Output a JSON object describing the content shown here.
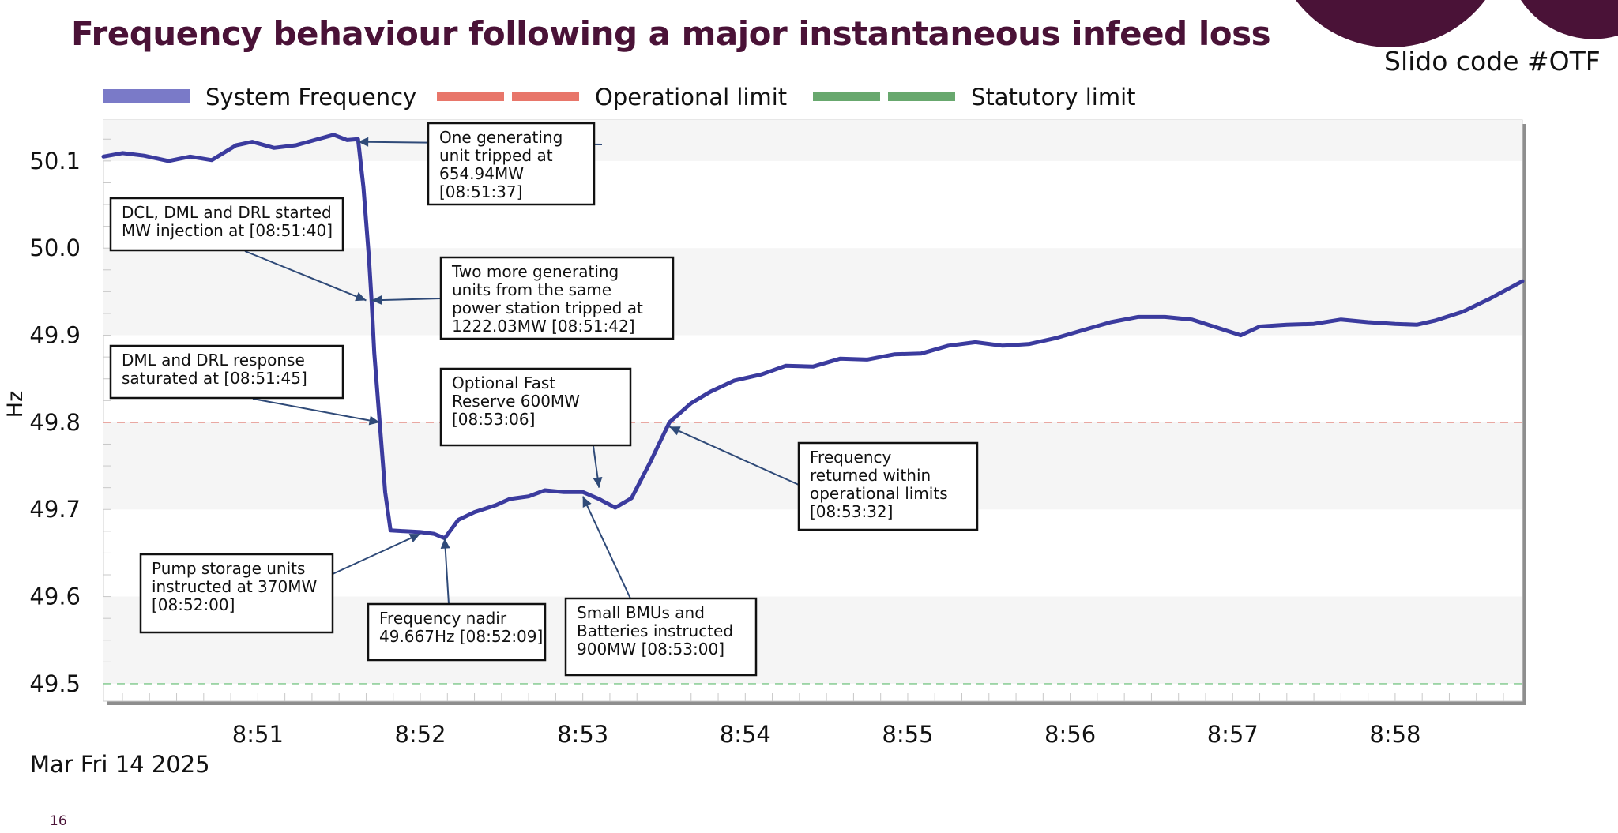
{
  "slide": {
    "title": "Frequency behaviour following a major instantaneous infeed loss",
    "slido": "Slido code #OTF",
    "page_number": "16",
    "accent_color": "#4a1237"
  },
  "chart_data": {
    "type": "line",
    "xlabel": "",
    "ylabel": "Hz",
    "date_label": "Mar Fri 14 2025",
    "xlim": [
      "08:50:03",
      "08:58:47"
    ],
    "ylim": [
      49.48,
      50.147
    ],
    "x_ticks": [
      {
        "t": "08:51:00",
        "label": "8:51"
      },
      {
        "t": "08:52:00",
        "label": "8:52"
      },
      {
        "t": "08:53:00",
        "label": "8:53"
      },
      {
        "t": "08:54:00",
        "label": "8:54"
      },
      {
        "t": "08:55:00",
        "label": "8:55"
      },
      {
        "t": "08:56:00",
        "label": "8:56"
      },
      {
        "t": "08:57:00",
        "label": "8:57"
      },
      {
        "t": "08:58:00",
        "label": "8:58"
      }
    ],
    "y_ticks": [
      {
        "v": 50.1,
        "label": "50.1"
      },
      {
        "v": 50.0,
        "label": "50.0"
      },
      {
        "v": 49.9,
        "label": "49.9"
      },
      {
        "v": 49.8,
        "label": "49.8"
      },
      {
        "v": 49.7,
        "label": "49.7"
      },
      {
        "v": 49.6,
        "label": "49.6"
      },
      {
        "v": 49.5,
        "label": "49.5"
      }
    ],
    "legend_position": "top",
    "grid": "alternating horizontal bands, minor tick marks",
    "series": [
      {
        "name": "System Frequency",
        "color": "#3b3b9e",
        "legend_color": "#7a7ac8",
        "points": [
          [
            "08:50:03",
            50.105
          ],
          [
            "08:50:10",
            50.109
          ],
          [
            "08:50:18",
            50.106
          ],
          [
            "08:50:27",
            50.1
          ],
          [
            "08:50:35",
            50.105
          ],
          [
            "08:50:43",
            50.101
          ],
          [
            "08:50:52",
            50.118
          ],
          [
            "08:50:58",
            50.122
          ],
          [
            "08:51:06",
            50.115
          ],
          [
            "08:51:14",
            50.118
          ],
          [
            "08:51:21",
            50.124
          ],
          [
            "08:51:28",
            50.13
          ],
          [
            "08:51:33",
            50.124
          ],
          [
            "08:51:37",
            50.125
          ],
          [
            "08:51:39",
            50.07
          ],
          [
            "08:51:41",
            49.99
          ],
          [
            "08:51:42",
            49.94
          ],
          [
            "08:51:43",
            49.88
          ],
          [
            "08:51:45",
            49.8
          ],
          [
            "08:51:47",
            49.72
          ],
          [
            "08:51:49",
            49.676
          ],
          [
            "08:51:54",
            49.675
          ],
          [
            "08:52:00",
            49.674
          ],
          [
            "08:52:05",
            49.672
          ],
          [
            "08:52:09",
            49.667
          ],
          [
            "08:52:14",
            49.688
          ],
          [
            "08:52:20",
            49.697
          ],
          [
            "08:52:28",
            49.705
          ],
          [
            "08:52:33",
            49.712
          ],
          [
            "08:52:40",
            49.715
          ],
          [
            "08:52:46",
            49.722
          ],
          [
            "08:52:53",
            49.72
          ],
          [
            "08:53:00",
            49.72
          ],
          [
            "08:53:06",
            49.712
          ],
          [
            "08:53:12",
            49.702
          ],
          [
            "08:53:18",
            49.713
          ],
          [
            "08:53:25",
            49.755
          ],
          [
            "08:53:32",
            49.8
          ],
          [
            "08:53:40",
            49.822
          ],
          [
            "08:53:47",
            49.835
          ],
          [
            "08:53:56",
            49.848
          ],
          [
            "08:54:06",
            49.855
          ],
          [
            "08:54:15",
            49.865
          ],
          [
            "08:54:25",
            49.864
          ],
          [
            "08:54:35",
            49.873
          ],
          [
            "08:54:45",
            49.872
          ],
          [
            "08:54:55",
            49.878
          ],
          [
            "08:55:05",
            49.879
          ],
          [
            "08:55:15",
            49.888
          ],
          [
            "08:55:25",
            49.892
          ],
          [
            "08:55:35",
            49.888
          ],
          [
            "08:55:45",
            49.89
          ],
          [
            "08:55:55",
            49.897
          ],
          [
            "08:56:05",
            49.906
          ],
          [
            "08:56:15",
            49.915
          ],
          [
            "08:56:25",
            49.921
          ],
          [
            "08:56:35",
            49.921
          ],
          [
            "08:56:45",
            49.918
          ],
          [
            "08:56:55",
            49.908
          ],
          [
            "08:57:03",
            49.9
          ],
          [
            "08:57:10",
            49.91
          ],
          [
            "08:57:20",
            49.912
          ],
          [
            "08:57:30",
            49.913
          ],
          [
            "08:57:40",
            49.918
          ],
          [
            "08:57:50",
            49.915
          ],
          [
            "08:58:00",
            49.913
          ],
          [
            "08:58:08",
            49.912
          ],
          [
            "08:58:15",
            49.917
          ],
          [
            "08:58:25",
            49.927
          ],
          [
            "08:58:35",
            49.942
          ],
          [
            "08:58:47",
            49.962
          ]
        ]
      },
      {
        "name": "Operational limit",
        "color": "#e58f86",
        "legend_color": "#e8766a",
        "value": 49.8,
        "dashed": true
      },
      {
        "name": "Statutory limit",
        "color": "#8fcf9a",
        "legend_color": "#68a86e",
        "value": 49.5,
        "dashed": true
      }
    ],
    "annotations": [
      {
        "lines": [
          "One generating",
          "unit tripped at",
          "654.94MW",
          "[08:51:37]"
        ],
        "target": [
          "08:51:37",
          50.122
        ]
      },
      {
        "lines": [
          "DCL, DML and DRL started",
          "MW injection at [08:51:40]"
        ],
        "target": [
          "08:51:40",
          49.94
        ]
      },
      {
        "lines": [
          "Two more generating",
          "units from the same",
          "power station tripped at",
          "1222.03MW [08:51:42]"
        ],
        "target": [
          "08:51:42",
          49.94
        ]
      },
      {
        "lines": [
          "DML and DRL response",
          "saturated at [08:51:45]"
        ],
        "target": [
          "08:51:45",
          49.8
        ]
      },
      {
        "lines": [
          "Optional Fast",
          "Reserve 600MW",
          "[08:53:06]"
        ],
        "target": [
          "08:53:06",
          49.725
        ]
      },
      {
        "lines": [
          "Frequency",
          "returned within",
          "operational limits",
          "[08:53:32]"
        ],
        "target": [
          "08:53:32",
          49.795
        ]
      },
      {
        "lines": [
          "Pump storage units",
          "instructed at 370MW",
          "[08:52:00]"
        ],
        "target": [
          "08:52:00",
          49.672
        ]
      },
      {
        "lines": [
          "Frequency nadir",
          "49.667Hz [08:52:09]"
        ],
        "target": [
          "08:52:09",
          49.667
        ]
      },
      {
        "lines": [
          "Small BMUs and",
          "Batteries instructed",
          "900MW [08:53:00]"
        ],
        "target": [
          "08:53:00",
          49.715
        ]
      }
    ]
  }
}
